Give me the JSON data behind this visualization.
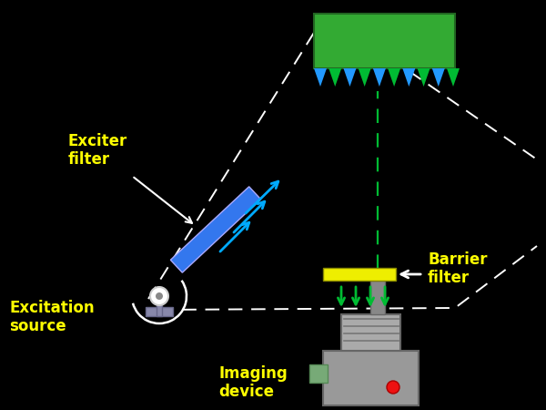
{
  "bg_color": "#000000",
  "exciter_filter_color": "#3377ee",
  "barrier_filter_color": "#eeee00",
  "green_plate_color": "#33aa33",
  "blue_tri_color": "#2299ff",
  "green_tri_color": "#00bb33",
  "white_dashed_color": "#ffffff",
  "green_dashed_color": "#00bb33",
  "label_color": "#ffff00",
  "white_color": "#ffffff",
  "exciter_label": "Exciter\nfilter",
  "excitation_label": "Excitation\nsource",
  "barrier_label": "Barrier\nfilter",
  "imaging_label": "Imaging\ndevice",
  "font_size": 12,
  "bg_color_fig": "#000000"
}
